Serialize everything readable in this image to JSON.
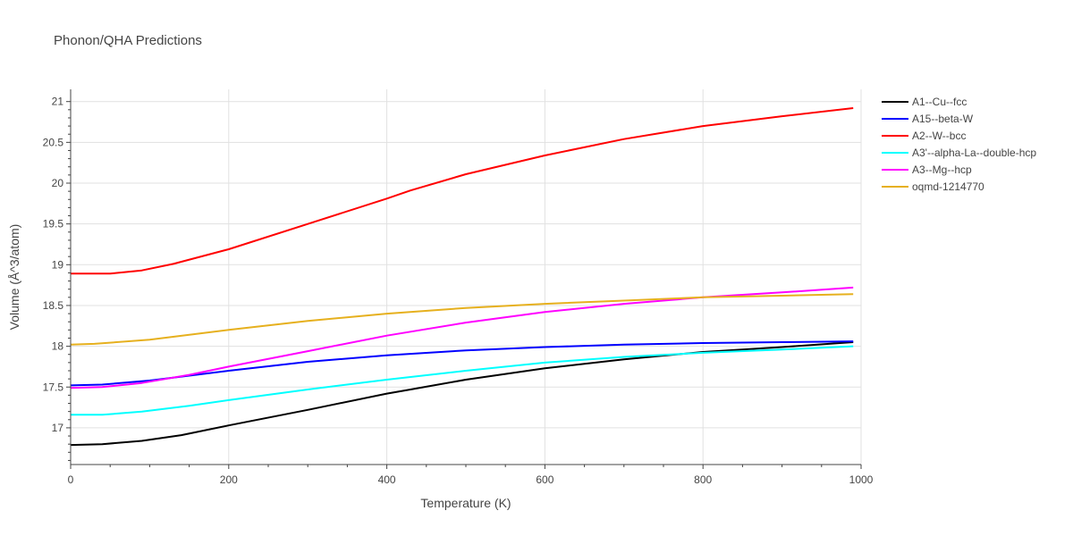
{
  "chart_data": {
    "type": "line",
    "title": "Phonon/QHA Predictions",
    "xlabel": "Temperature (K)",
    "ylabel": "Volume (Å^3/atom)",
    "xlim": [
      0,
      1000
    ],
    "ylim": [
      16.55,
      21.15
    ],
    "xticks": [
      0,
      200,
      400,
      600,
      800,
      1000
    ],
    "yticks": [
      17,
      17.5,
      18,
      18.5,
      19,
      19.5,
      20,
      20.5,
      21
    ],
    "ytick_labels": [
      "17",
      "17.5",
      "18",
      "18.5",
      "19",
      "19.5",
      "20",
      "20.5",
      "21"
    ],
    "grid": true,
    "legend_position": "top-right",
    "series": [
      {
        "name": "A1--Cu--fcc",
        "color": "#000000",
        "x": [
          0,
          40,
          90,
          140,
          200,
          300,
          400,
          430,
          500,
          600,
          700,
          800,
          900,
          990
        ],
        "y": [
          16.79,
          16.8,
          16.84,
          16.91,
          17.03,
          17.22,
          17.42,
          17.47,
          17.59,
          17.73,
          17.84,
          17.93,
          17.99,
          18.05
        ]
      },
      {
        "name": "A15--beta-W",
        "color": "#0000ff",
        "x": [
          0,
          40,
          100,
          150,
          200,
          300,
          400,
          500,
          600,
          700,
          800,
          900,
          990
        ],
        "y": [
          17.52,
          17.53,
          17.58,
          17.64,
          17.7,
          17.81,
          17.89,
          17.95,
          17.99,
          18.02,
          18.04,
          18.05,
          18.06
        ]
      },
      {
        "name": "A2--W--bcc",
        "color": "#ff0000",
        "x": [
          0,
          30,
          50,
          90,
          130,
          200,
          300,
          400,
          430,
          500,
          600,
          700,
          800,
          900,
          990
        ],
        "y": [
          18.89,
          18.89,
          18.89,
          18.93,
          19.01,
          19.19,
          19.5,
          19.81,
          19.91,
          20.11,
          20.34,
          20.54,
          20.7,
          20.82,
          20.92
        ]
      },
      {
        "name": "A3'--alpha-La--double-hcp",
        "color": "#00ffff",
        "x": [
          0,
          40,
          90,
          150,
          200,
          300,
          400,
          500,
          600,
          700,
          800,
          900,
          990
        ],
        "y": [
          17.16,
          17.16,
          17.2,
          17.27,
          17.34,
          17.47,
          17.59,
          17.7,
          17.8,
          17.87,
          17.92,
          17.96,
          18.0
        ]
      },
      {
        "name": "A3--Mg--hcp",
        "color": "#ff00ff",
        "x": [
          0,
          40,
          90,
          150,
          200,
          300,
          400,
          500,
          600,
          700,
          800,
          900,
          990
        ],
        "y": [
          17.49,
          17.5,
          17.55,
          17.65,
          17.75,
          17.94,
          18.13,
          18.29,
          18.42,
          18.52,
          18.6,
          18.66,
          18.72
        ]
      },
      {
        "name": "oqmd-1214770",
        "color": "#e6b01e",
        "x": [
          0,
          30,
          100,
          200,
          300,
          400,
          500,
          600,
          700,
          800,
          900,
          990
        ],
        "y": [
          18.02,
          18.03,
          18.08,
          18.2,
          18.31,
          18.4,
          18.47,
          18.52,
          18.56,
          18.6,
          18.62,
          18.64
        ]
      }
    ]
  }
}
